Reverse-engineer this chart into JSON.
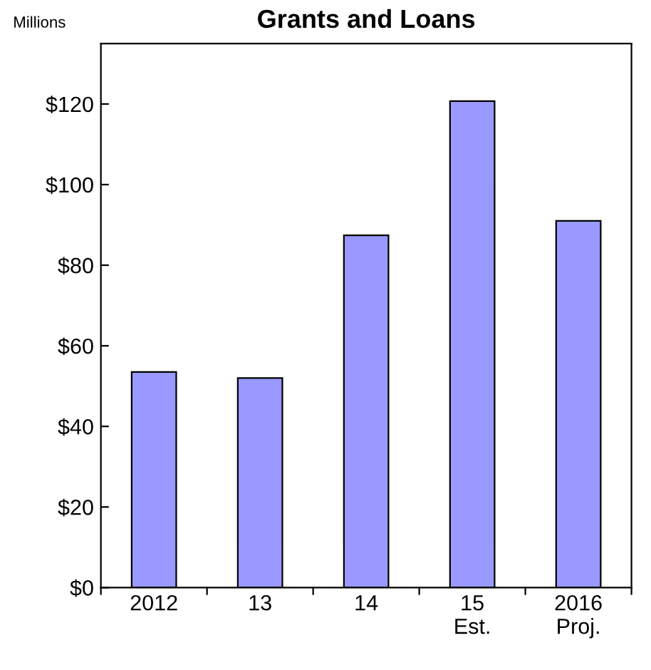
{
  "chart_data": {
    "type": "bar",
    "title": "Grants and Loans",
    "ylabel": "Millions",
    "categories": [
      "2012",
      "13",
      "14",
      "15\nEst.",
      "2016\nProj."
    ],
    "values": [
      53.5,
      52,
      87.4,
      120.7,
      91
    ],
    "color": "#9999ff",
    "ylim": [
      0,
      135
    ],
    "yticks": [
      {
        "value": 0,
        "label": "$0"
      },
      {
        "value": 20,
        "label": "$20"
      },
      {
        "value": 40,
        "label": "$40"
      },
      {
        "value": 60,
        "label": "$60"
      },
      {
        "value": 80,
        "label": "$80"
      },
      {
        "value": 100,
        "label": "$100"
      },
      {
        "value": 120,
        "label": "$120"
      }
    ],
    "grid": false,
    "legend": false
  }
}
